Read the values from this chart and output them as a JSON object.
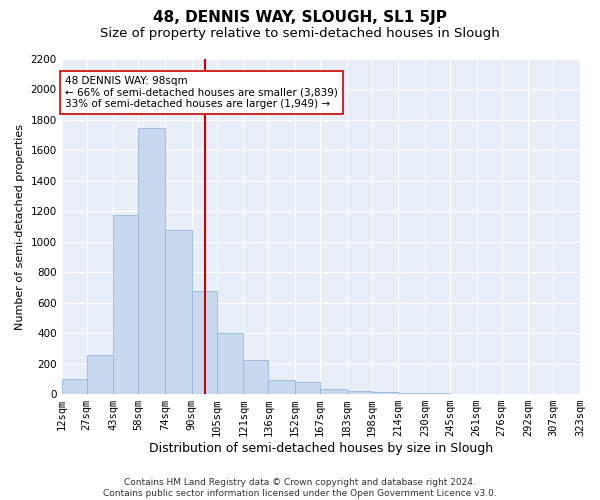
{
  "title1": "48, DENNIS WAY, SLOUGH, SL1 5JP",
  "title2": "Size of property relative to semi-detached houses in Slough",
  "xlabel": "Distribution of semi-detached houses by size in Slough",
  "ylabel": "Number of semi-detached properties",
  "bin_labels": [
    "12sqm",
    "27sqm",
    "43sqm",
    "58sqm",
    "74sqm",
    "90sqm",
    "105sqm",
    "121sqm",
    "136sqm",
    "152sqm",
    "167sqm",
    "183sqm",
    "198sqm",
    "214sqm",
    "230sqm",
    "245sqm",
    "261sqm",
    "276sqm",
    "292sqm",
    "307sqm",
    "323sqm"
  ],
  "bin_edges": [
    12,
    27,
    43,
    58,
    74,
    90,
    105,
    121,
    136,
    152,
    167,
    183,
    198,
    214,
    230,
    245,
    261,
    276,
    292,
    307,
    323
  ],
  "bar_heights": [
    100,
    255,
    1175,
    1750,
    1075,
    675,
    400,
    225,
    90,
    80,
    35,
    20,
    15,
    10,
    5,
    3,
    2,
    1,
    0,
    0
  ],
  "bar_color": "#c8d8ee",
  "bar_edgecolor": "#9ab8d8",
  "property_size": 98,
  "red_line_color": "#cc0000",
  "annotation_text": "48 DENNIS WAY: 98sqm\n← 66% of semi-detached houses are smaller (3,839)\n33% of semi-detached houses are larger (1,949) →",
  "annotation_box_facecolor": "#ffffff",
  "annotation_box_edgecolor": "#cc0000",
  "ylim": [
    0,
    2200
  ],
  "yticks": [
    0,
    200,
    400,
    600,
    800,
    1000,
    1200,
    1400,
    1600,
    1800,
    2000,
    2200
  ],
  "xlim_left": 12,
  "xlim_right": 323,
  "bg_color": "#e8eef8",
  "grid_color": "#ffffff",
  "footer": "Contains HM Land Registry data © Crown copyright and database right 2024.\nContains public sector information licensed under the Open Government Licence v3.0.",
  "title1_fontsize": 11,
  "title2_fontsize": 9.5,
  "xlabel_fontsize": 9,
  "ylabel_fontsize": 8,
  "tick_fontsize": 7.5,
  "footer_fontsize": 6.5,
  "annotation_fontsize": 7.5
}
